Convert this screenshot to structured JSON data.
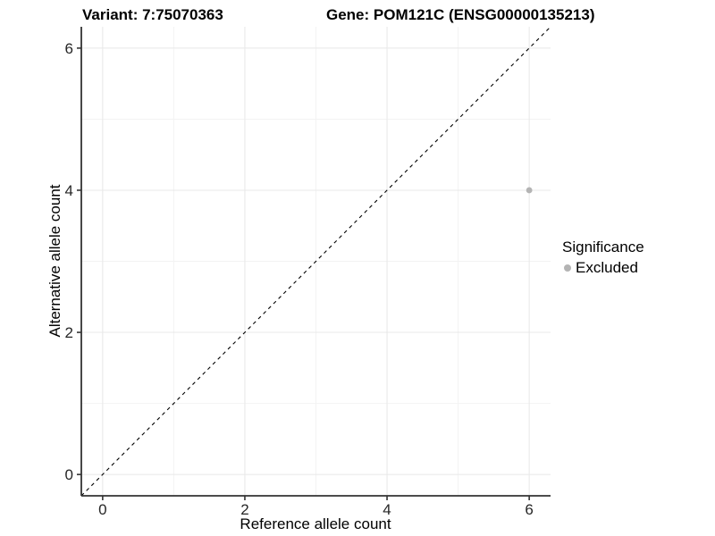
{
  "titles": {
    "variant": "Variant: 7:75070363",
    "gene": "Gene: POM121C (ENSG00000135213)"
  },
  "axes": {
    "x_label": "Reference allele count",
    "y_label": "Alternative allele count"
  },
  "legend": {
    "title": "Significance",
    "items": [
      {
        "label": "Excluded",
        "color": "#b4b4b4"
      }
    ]
  },
  "colors": {
    "background": "#ffffff",
    "axis_line": "#333333",
    "tick_label": "#262626",
    "grid_major": "#e8e8e8",
    "grid_minor": "#f3f3f3",
    "identity_line": "#000000",
    "excluded_point": "#b4b4b4"
  },
  "chart_data": {
    "type": "scatter",
    "title": "Variant: 7:75070363 | Gene: POM121C (ENSG00000135213)",
    "xlabel": "Reference allele count",
    "ylabel": "Alternative allele count",
    "xlim": [
      -0.3,
      6.3
    ],
    "ylim": [
      -0.3,
      6.3
    ],
    "x_ticks": [
      0,
      2,
      4,
      6
    ],
    "y_ticks": [
      0,
      2,
      4,
      6
    ],
    "x_minor_ticks": [
      1,
      3,
      5
    ],
    "y_minor_ticks": [
      1,
      3,
      5
    ],
    "grid": true,
    "legend_position": "right",
    "legend_title": "Significance",
    "reference_line": {
      "slope": 1,
      "intercept": 0,
      "style": "dashed",
      "color": "#000000"
    },
    "series": [
      {
        "name": "Excluded",
        "color": "#b4b4b4",
        "points": [
          {
            "x": 6,
            "y": 4
          }
        ]
      }
    ]
  }
}
